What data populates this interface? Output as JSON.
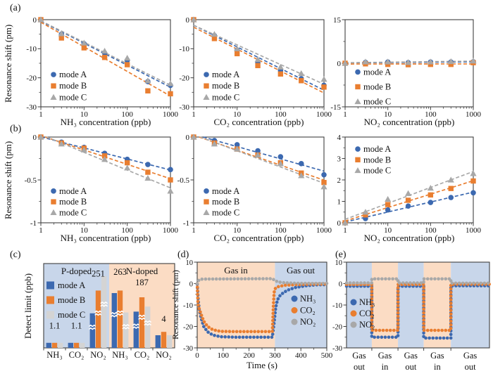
{
  "panel_labels": {
    "a": "(a)",
    "b": "(b)",
    "c": "(c)",
    "d": "(d)",
    "e": "(e)"
  },
  "colors": {
    "modeA": "#3C69B0",
    "modeB": "#E97E30",
    "modeC": "#A8A8A8",
    "modeC_bar": "#D4D4D4",
    "bg_blue": "#C8D6EA",
    "bg_orange": "#FBDCC4",
    "axis": "#3F3F3F"
  },
  "chart_data": [
    {
      "id": "a1",
      "type": "scatter",
      "xscale": "log",
      "xlabel": "NH₃ concentration (ppb)",
      "ylabel": "Resonance shift (pm)",
      "xlim": [
        1,
        1000
      ],
      "xticks": [
        1,
        10,
        100,
        1000
      ],
      "ylim": [
        -30,
        0
      ],
      "yticks": [
        0,
        -10,
        -20,
        -30
      ],
      "x": [
        1,
        3,
        10,
        30,
        100,
        300,
        1000
      ],
      "series": [
        {
          "name": "mode A",
          "marker": "circle",
          "color": "modeA",
          "y": [
            0,
            -5.0,
            -8.3,
            -11.5,
            -14.0,
            -21.3,
            -22.6
          ]
        },
        {
          "name": "mode B",
          "marker": "square",
          "color": "modeB",
          "y": [
            0,
            -6.3,
            -9.7,
            -13.0,
            -15.5,
            -24.5,
            -25.5
          ]
        },
        {
          "name": "mode C",
          "marker": "triangle",
          "color": "modeC",
          "y": [
            0,
            -4.8,
            -8.0,
            -10.8,
            -13.2,
            -21.0,
            -22.0
          ]
        }
      ]
    },
    {
      "id": "a2",
      "type": "scatter",
      "xscale": "log",
      "xlabel": "CO₂ concentration (ppb)",
      "ylabel": "Resonance shift (pm)",
      "xlim": [
        1,
        1000
      ],
      "xticks": [
        1,
        10,
        100,
        1000
      ],
      "ylim": [
        -30,
        0
      ],
      "yticks": [
        0,
        -10,
        -20,
        -30
      ],
      "x": [
        1,
        3,
        10,
        30,
        100,
        300,
        1000
      ],
      "series": [
        {
          "name": "mode A",
          "marker": "circle",
          "color": "modeA",
          "y": [
            0,
            -5.5,
            -10.5,
            -14.8,
            -17.5,
            -20.3,
            -22.6
          ]
        },
        {
          "name": "mode B",
          "marker": "square",
          "color": "modeB",
          "y": [
            0,
            -6.5,
            -11.7,
            -15.8,
            -18.7,
            -21.0,
            -23.2
          ]
        },
        {
          "name": "mode C",
          "marker": "triangle",
          "color": "modeC",
          "y": [
            0,
            -5.0,
            -10.0,
            -13.7,
            -16.3,
            -18.5,
            -20.5
          ]
        }
      ]
    },
    {
      "id": "a3",
      "type": "scatter",
      "xscale": "log",
      "xlabel": "NO₂ concentration (ppb)",
      "ylabel": "Resonance shift (pm)",
      "xlim": [
        1,
        1000
      ],
      "xticks": [
        1,
        10,
        100,
        1000
      ],
      "ylim": [
        -15,
        15
      ],
      "yticks": [
        15,
        0,
        -15
      ],
      "x": [
        1,
        3,
        10,
        30,
        100,
        300,
        1000
      ],
      "series": [
        {
          "name": "mode A",
          "marker": "circle",
          "color": "modeA",
          "y": [
            0,
            0.3,
            0.4,
            0.2,
            0.4,
            0.4,
            0.5
          ]
        },
        {
          "name": "mode B",
          "marker": "square",
          "color": "modeB",
          "y": [
            0,
            -0.2,
            -0.4,
            -0.5,
            -0.4,
            -0.4,
            0.2
          ]
        },
        {
          "name": "mode C",
          "marker": "triangle",
          "color": "modeC",
          "y": [
            0,
            0.5,
            0.5,
            0.3,
            0.5,
            0.6,
            0.8
          ]
        }
      ]
    },
    {
      "id": "b1",
      "type": "scatter",
      "xscale": "log",
      "xlabel": "NH₃ concentration (ppb)",
      "ylabel": "Resonance shift (pm)",
      "xlim": [
        1,
        1000
      ],
      "xticks": [
        1,
        10,
        100,
        1000
      ],
      "ylim": [
        -1,
        0
      ],
      "yticks": [
        0,
        -0.5,
        -1
      ],
      "x": [
        1,
        3,
        10,
        30,
        100,
        300,
        1000
      ],
      "series": [
        {
          "name": "mode A",
          "marker": "circle",
          "color": "modeA",
          "y": [
            0,
            -0.06,
            -0.12,
            -0.19,
            -0.26,
            -0.32,
            -0.38
          ]
        },
        {
          "name": "mode B",
          "marker": "square",
          "color": "modeB",
          "y": [
            0,
            -0.07,
            -0.13,
            -0.22,
            -0.3,
            -0.41,
            -0.5
          ]
        },
        {
          "name": "mode C",
          "marker": "triangle",
          "color": "modeC",
          "y": [
            0,
            -0.08,
            -0.15,
            -0.26,
            -0.36,
            -0.48,
            -0.63
          ]
        }
      ]
    },
    {
      "id": "b2",
      "type": "scatter",
      "xscale": "log",
      "xlabel": "CO₂ concentration (ppb)",
      "ylabel": "Resonance shift (pm)",
      "xlim": [
        1,
        1000
      ],
      "xticks": [
        1,
        10,
        100,
        1000
      ],
      "ylim": [
        -1,
        0
      ],
      "yticks": [
        0,
        -0.5,
        -1
      ],
      "x": [
        1,
        3,
        10,
        30,
        100,
        300,
        1000
      ],
      "series": [
        {
          "name": "mode A",
          "marker": "circle",
          "color": "modeA",
          "y": [
            0,
            -0.04,
            -0.09,
            -0.16,
            -0.23,
            -0.31,
            -0.44
          ]
        },
        {
          "name": "mode B",
          "marker": "square",
          "color": "modeB",
          "y": [
            0,
            -0.07,
            -0.14,
            -0.21,
            -0.3,
            -0.42,
            -0.53
          ]
        },
        {
          "name": "mode C",
          "marker": "triangle",
          "color": "modeC",
          "y": [
            0,
            -0.08,
            -0.14,
            -0.21,
            -0.31,
            -0.45,
            -0.58
          ]
        }
      ]
    },
    {
      "id": "b3",
      "type": "scatter",
      "xscale": "log",
      "xlabel": "NO₂ concentration (ppb)",
      "ylabel": "Resonance shift (pm)",
      "xlim": [
        1,
        1000
      ],
      "xticks": [
        1,
        10,
        100,
        1000
      ],
      "ylim": [
        0,
        4
      ],
      "yticks": [
        0,
        1,
        2,
        3,
        4
      ],
      "x": [
        1,
        3,
        10,
        30,
        100,
        300,
        1000
      ],
      "series": [
        {
          "name": "mode A",
          "marker": "circle",
          "color": "modeA",
          "y": [
            0,
            0.2,
            0.6,
            0.78,
            0.95,
            1.18,
            1.4
          ]
        },
        {
          "name": "mode B",
          "marker": "square",
          "color": "modeB",
          "y": [
            0,
            0.37,
            0.85,
            1.05,
            1.3,
            1.6,
            1.95
          ]
        },
        {
          "name": "mode C",
          "marker": "triangle",
          "color": "modeC",
          "y": [
            0,
            0.5,
            1.1,
            1.37,
            1.62,
            2.0,
            2.3
          ]
        }
      ]
    },
    {
      "id": "c",
      "type": "bar",
      "ylabel": "Detect limit (ppb)",
      "note": "broken-axis bar chart; bar heights are relative, true values shown as annotations (ppb)",
      "regions": [
        {
          "label": "P-doped",
          "bg": "bg_blue",
          "span": [
            0,
            3
          ]
        },
        {
          "label": "N-doped",
          "bg": "bg_orange",
          "span": [
            3,
            6
          ]
        }
      ],
      "categories": [
        "NH₃",
        "CO₂",
        "NO₂",
        "NH₃",
        "CO₂",
        "NO₂"
      ],
      "legend": [
        {
          "name": "mode A",
          "color": "modeA"
        },
        {
          "name": "mode B",
          "color": "modeB"
        },
        {
          "name": "mode C",
          "color": "modeC_bar"
        }
      ],
      "groups": [
        {
          "values": [
            0.06,
            0.06,
            0.06
          ],
          "annotation": "1.1",
          "ann_yfrac": 0.77
        },
        {
          "values": [
            0.06,
            0.06,
            0.06
          ],
          "annotation": "1.1",
          "ann_yfrac": 0.77
        },
        {
          "values": [
            0.41,
            0.68,
            0.85
          ],
          "annotation": "251",
          "ann_yfrac": 0.155
        },
        {
          "values": [
            0.65,
            0.68,
            0.42
          ],
          "annotation": "263",
          "ann_yfrac": 0.135
        },
        {
          "values": [
            0.43,
            0.6,
            0.49
          ],
          "annotation": "187",
          "ann_yfrac": 0.26
        },
        {
          "values": [
            0.15,
            0.19,
            0.15
          ],
          "annotation": "4",
          "ann_yfrac": 0.69
        }
      ]
    },
    {
      "id": "d",
      "type": "time",
      "xlabel": "Time (s)",
      "ylabel": "Resonance shift (pm)",
      "xlim": [
        0,
        500
      ],
      "xticks": [
        0,
        100,
        200,
        300,
        400,
        500
      ],
      "ylim": [
        -30,
        10
      ],
      "yticks": [
        10,
        0,
        -10,
        -20,
        -30
      ],
      "regions": [
        {
          "label": "Gas in",
          "bg": "bg_orange",
          "span": [
            0,
            300
          ]
        },
        {
          "label": "Gas out",
          "bg": "bg_blue",
          "span": [
            300,
            500
          ]
        }
      ],
      "legend": [
        {
          "name": "NH₃",
          "color": "modeA"
        },
        {
          "name": "CO₂",
          "color": "modeB"
        },
        {
          "name": "NO₂",
          "color": "modeC"
        }
      ],
      "series": [
        {
          "name": "NH₃",
          "color": "modeA",
          "points": [
            [
              0,
              -0.3
            ],
            [
              4,
              -8
            ],
            [
              8,
              -12
            ],
            [
              15,
              -16
            ],
            [
              25,
              -20
            ],
            [
              40,
              -22.5
            ],
            [
              60,
              -24
            ],
            [
              90,
              -24.8
            ],
            [
              150,
              -25
            ],
            [
              290,
              -25
            ],
            [
              297,
              -18
            ],
            [
              303,
              -11
            ],
            [
              310,
              -7.5
            ],
            [
              320,
              -5.5
            ],
            [
              335,
              -4
            ],
            [
              355,
              -2.8
            ],
            [
              380,
              -1.8
            ],
            [
              420,
              -1
            ],
            [
              460,
              -0.6
            ],
            [
              500,
              -0.5
            ]
          ]
        },
        {
          "name": "CO₂",
          "color": "modeB",
          "points": [
            [
              0,
              0
            ],
            [
              3,
              -9.5
            ],
            [
              7,
              -11.5
            ],
            [
              14,
              -14
            ],
            [
              25,
              -17.5
            ],
            [
              40,
              -20
            ],
            [
              60,
              -21.5
            ],
            [
              90,
              -22.3
            ],
            [
              150,
              -22.4
            ],
            [
              290,
              -22.4
            ],
            [
              294,
              -10
            ],
            [
              297,
              -4
            ],
            [
              302,
              -2.2
            ],
            [
              315,
              -1.3
            ],
            [
              340,
              -0.8
            ],
            [
              380,
              -0.5
            ],
            [
              440,
              -0.3
            ],
            [
              500,
              -0.2
            ]
          ]
        },
        {
          "name": "NO₂",
          "color": "modeC",
          "points": [
            [
              0,
              0
            ],
            [
              4,
              1.3
            ],
            [
              10,
              1.9
            ],
            [
              20,
              2.1
            ],
            [
              150,
              2.2
            ],
            [
              290,
              2.3
            ],
            [
              300,
              1.4
            ],
            [
              312,
              0.8
            ],
            [
              330,
              0.45
            ],
            [
              360,
              0.25
            ],
            [
              400,
              0.1
            ],
            [
              500,
              0.05
            ]
          ]
        }
      ]
    },
    {
      "id": "e",
      "type": "steps",
      "ylim": [
        -30,
        10
      ],
      "yticks": [
        10,
        0,
        -10,
        -20,
        -30
      ],
      "regions": [
        {
          "line1": "Gas",
          "line2": "out",
          "bg": "bg_blue",
          "span": [
            0,
            0.177
          ]
        },
        {
          "line1": "Gas",
          "line2": "in",
          "bg": "bg_orange",
          "span": [
            0.177,
            0.36
          ]
        },
        {
          "line1": "Gas",
          "line2": "out",
          "bg": "bg_blue",
          "span": [
            0.36,
            0.54
          ]
        },
        {
          "line1": "Gas",
          "line2": "in",
          "bg": "bg_orange",
          "span": [
            0.54,
            0.73
          ]
        },
        {
          "line1": "Gas",
          "line2": "out",
          "bg": "bg_blue",
          "span": [
            0.73,
            1
          ]
        }
      ],
      "legend": [
        {
          "name": "NH₃",
          "color": "modeA"
        },
        {
          "name": "CO₂",
          "color": "modeB"
        },
        {
          "name": "NO₂",
          "color": "modeC"
        }
      ],
      "series": [
        {
          "name": "NH₃",
          "color": "modeA",
          "levels": [
            -1.2,
            -25.0,
            -1.2,
            -25.4,
            -1.0
          ]
        },
        {
          "name": "CO₂",
          "color": "modeB",
          "levels": [
            -0.4,
            -21.8,
            -0.4,
            -21.8,
            -0.3
          ]
        },
        {
          "name": "NO₂",
          "color": "modeC",
          "levels": [
            0.3,
            2.2,
            0.3,
            2.2,
            0.2
          ]
        }
      ]
    }
  ]
}
